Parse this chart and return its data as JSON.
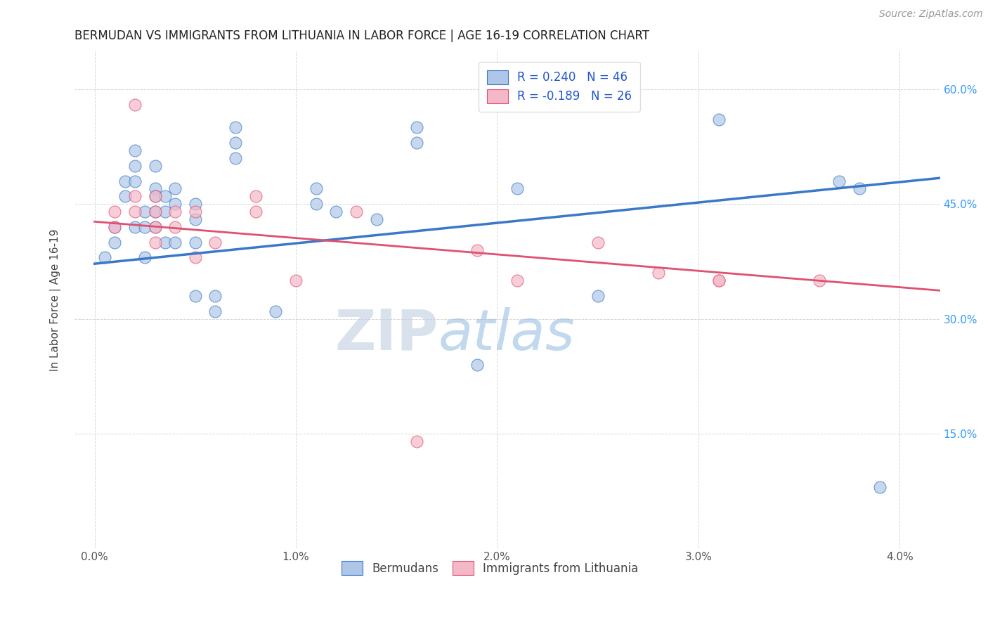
{
  "title": "BERMUDAN VS IMMIGRANTS FROM LITHUANIA IN LABOR FORCE | AGE 16-19 CORRELATION CHART",
  "source": "Source: ZipAtlas.com",
  "ylabel": "In Labor Force | Age 16-19",
  "right_yticks": [
    0.15,
    0.3,
    0.45,
    0.6
  ],
  "right_yticklabels": [
    "15.0%",
    "30.0%",
    "45.0%",
    "60.0%"
  ],
  "xticks": [
    0.0,
    0.01,
    0.02,
    0.03,
    0.04
  ],
  "xticklabels": [
    "0.0%",
    "1.0%",
    "2.0%",
    "3.0%",
    "4.0%"
  ],
  "xlim": [
    -0.001,
    0.042
  ],
  "ylim": [
    0.0,
    0.65
  ],
  "legend_label1": "Bermudans",
  "legend_label2": "Immigrants from Lithuania",
  "R1": 0.24,
  "N1": 46,
  "R2": -0.189,
  "N2": 26,
  "blue_color": "#aec6e8",
  "blue_line_color": "#3a78c9",
  "pink_color": "#f5b8c8",
  "pink_line_color": "#e05070",
  "watermark_zip": "ZIP",
  "watermark_atlas": "atlas",
  "blue_dots_x": [
    0.0005,
    0.001,
    0.001,
    0.0015,
    0.0015,
    0.002,
    0.002,
    0.002,
    0.002,
    0.0025,
    0.0025,
    0.0025,
    0.003,
    0.003,
    0.003,
    0.003,
    0.003,
    0.0035,
    0.0035,
    0.0035,
    0.004,
    0.004,
    0.004,
    0.005,
    0.005,
    0.005,
    0.005,
    0.006,
    0.006,
    0.007,
    0.007,
    0.007,
    0.009,
    0.011,
    0.011,
    0.012,
    0.014,
    0.016,
    0.016,
    0.019,
    0.021,
    0.025,
    0.031,
    0.037,
    0.038,
    0.039
  ],
  "blue_dots_y": [
    0.38,
    0.42,
    0.4,
    0.48,
    0.46,
    0.52,
    0.5,
    0.48,
    0.42,
    0.44,
    0.42,
    0.38,
    0.5,
    0.47,
    0.46,
    0.44,
    0.42,
    0.46,
    0.44,
    0.4,
    0.47,
    0.45,
    0.4,
    0.45,
    0.43,
    0.4,
    0.33,
    0.33,
    0.31,
    0.55,
    0.53,
    0.51,
    0.31,
    0.47,
    0.45,
    0.44,
    0.43,
    0.55,
    0.53,
    0.24,
    0.47,
    0.33,
    0.56,
    0.48,
    0.47,
    0.08
  ],
  "pink_dots_x": [
    0.001,
    0.001,
    0.002,
    0.002,
    0.002,
    0.003,
    0.003,
    0.003,
    0.003,
    0.004,
    0.004,
    0.005,
    0.005,
    0.006,
    0.008,
    0.008,
    0.01,
    0.013,
    0.016,
    0.019,
    0.021,
    0.025,
    0.028,
    0.031,
    0.031,
    0.036
  ],
  "pink_dots_y": [
    0.44,
    0.42,
    0.58,
    0.46,
    0.44,
    0.46,
    0.44,
    0.42,
    0.4,
    0.44,
    0.42,
    0.44,
    0.38,
    0.4,
    0.46,
    0.44,
    0.35,
    0.44,
    0.14,
    0.39,
    0.35,
    0.4,
    0.36,
    0.35,
    0.35,
    0.35
  ],
  "blue_trend_x": [
    0.0,
    0.042
  ],
  "blue_trend_y": [
    0.372,
    0.484
  ],
  "pink_trend_x": [
    0.0,
    0.042
  ],
  "pink_trend_y": [
    0.427,
    0.337
  ],
  "title_fontsize": 12,
  "axis_label_fontsize": 11,
  "tick_fontsize": 11,
  "legend_fontsize": 12
}
